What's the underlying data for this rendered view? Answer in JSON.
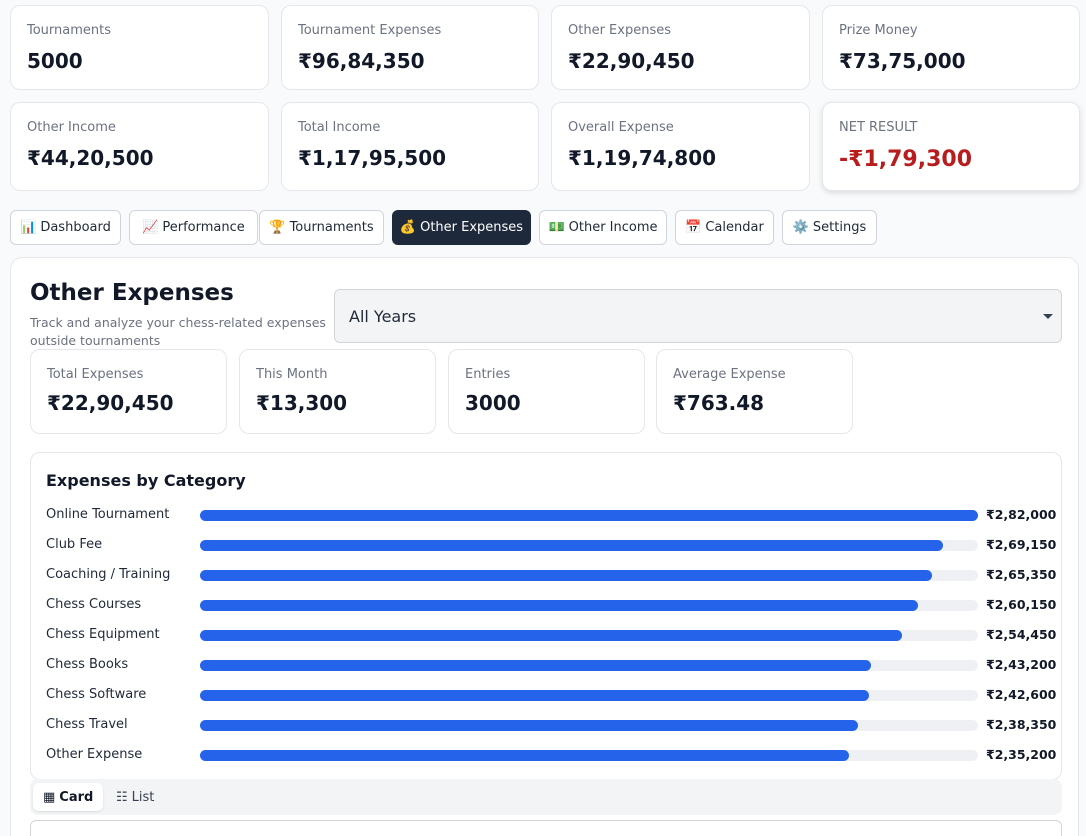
{
  "summary": {
    "tournaments": {
      "label": "Tournaments",
      "value": "5000"
    },
    "tournament_expenses": {
      "label": "Tournament Expenses",
      "value": "₹96,84,350"
    },
    "other_expenses": {
      "label": "Other Expenses",
      "value": "₹22,90,450"
    },
    "prize_money": {
      "label": "Prize Money",
      "value": "₹73,75,000"
    },
    "other_income": {
      "label": "Other Income",
      "value": "₹44,20,500"
    },
    "total_income": {
      "label": "Total Income",
      "value": "₹1,17,95,500"
    },
    "overall_expense": {
      "label": "Overall Expense",
      "value": "₹1,19,74,800"
    },
    "net_result": {
      "label": "NET RESULT",
      "value": "-₹1,79,300",
      "color": "#b91c1c"
    }
  },
  "tabs": [
    {
      "icon": "📊",
      "label": "Dashboard"
    },
    {
      "icon": "📈",
      "label": "Performance"
    },
    {
      "icon": "🏆",
      "label": "Tournaments"
    },
    {
      "icon": "💰",
      "label": "Other Expenses",
      "active": true
    },
    {
      "icon": "💵",
      "label": "Other Income"
    },
    {
      "icon": "📅",
      "label": "Calendar"
    },
    {
      "icon": "⚙️",
      "label": "Settings"
    }
  ],
  "page": {
    "title": "Other Expenses",
    "subtitle": "Track and analyze your chess-related expenses outside tournaments",
    "year_filter": "All Years"
  },
  "mini_stats": {
    "total": {
      "label": "Total Expenses",
      "value": "₹22,90,450"
    },
    "month": {
      "label": "This Month",
      "value": "₹13,300"
    },
    "entries": {
      "label": "Entries",
      "value": "3000"
    },
    "average": {
      "label": "Average Expense",
      "value": "₹763.48"
    }
  },
  "categories": {
    "title": "Expenses by Category",
    "items": [
      {
        "name": "Online Tournament",
        "amount": "₹2,82,000",
        "value": 282000
      },
      {
        "name": "Club Fee",
        "amount": "₹2,69,150",
        "value": 269150
      },
      {
        "name": "Coaching / Training",
        "amount": "₹2,65,350",
        "value": 265350
      },
      {
        "name": "Chess Courses",
        "amount": "₹2,60,150",
        "value": 260150
      },
      {
        "name": "Chess Equipment",
        "amount": "₹2,54,450",
        "value": 254450
      },
      {
        "name": "Chess Books",
        "amount": "₹2,43,200",
        "value": 243200
      },
      {
        "name": "Chess Software",
        "amount": "₹2,42,600",
        "value": 242600
      },
      {
        "name": "Chess Travel",
        "amount": "₹2,38,350",
        "value": 238350
      },
      {
        "name": "Other Expense",
        "amount": "₹2,35,200",
        "value": 235200
      }
    ],
    "bar_color": "#2563eb"
  },
  "view": {
    "card_icon": "▦",
    "card_label": "Card",
    "list_icon": "☷",
    "list_label": "List",
    "active": "card"
  }
}
